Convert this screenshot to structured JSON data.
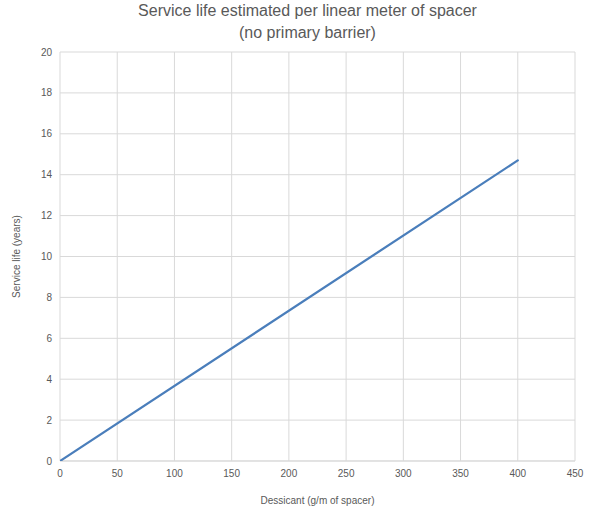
{
  "chart_data": {
    "type": "line",
    "title": "Service life estimated per linear meter of spacer",
    "subtitle": "(no primary barrier)",
    "x_label": "Dessicant (g/m of spacer)",
    "y_label": "Service life (years)",
    "x": [
      0,
      400
    ],
    "values": [
      0,
      14.7
    ],
    "color": "#4a7ebb",
    "xlim": [
      0,
      450
    ],
    "xticks": [
      0,
      50,
      100,
      150,
      200,
      250,
      300,
      350,
      400,
      450
    ],
    "ylim": [
      0,
      20
    ],
    "yticks": [
      0,
      2,
      4,
      6,
      8,
      10,
      12,
      14,
      16,
      18,
      20
    ],
    "grid": true
  }
}
